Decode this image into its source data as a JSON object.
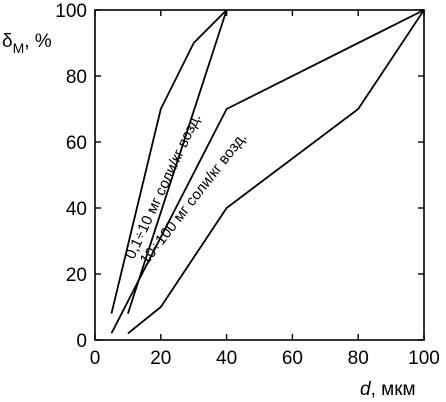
{
  "chart_data": {
    "type": "line",
    "xlabel": {
      "var": "d",
      "unit": ", мкм"
    },
    "ylabel": {
      "var": "δ",
      "sub": "М",
      "unit": ", %"
    },
    "xlim": [
      0,
      100
    ],
    "ylim": [
      0,
      100
    ],
    "xticks": [
      0,
      20,
      40,
      60,
      80,
      100
    ],
    "yticks": [
      0,
      20,
      40,
      60,
      80,
      100
    ],
    "grid": false,
    "colors": {
      "line": "#000000",
      "background": "#ffffff"
    },
    "series": [
      {
        "id": "band1-upper",
        "points": [
          [
            5,
            8
          ],
          [
            20,
            70
          ],
          [
            30,
            90
          ],
          [
            40,
            100
          ]
        ]
      },
      {
        "id": "band1-lower",
        "points": [
          [
            10,
            8
          ],
          [
            40,
            100
          ]
        ]
      },
      {
        "id": "band2-upper",
        "points": [
          [
            5,
            2
          ],
          [
            40,
            70
          ],
          [
            100,
            100
          ]
        ]
      },
      {
        "id": "band2-lower",
        "points": [
          [
            10,
            2
          ],
          [
            20,
            10
          ],
          [
            40,
            40
          ],
          [
            80,
            70
          ],
          [
            100,
            100
          ]
        ]
      }
    ],
    "annotations": [
      {
        "id": "band1",
        "text": "0,1÷10 мг соли/кг возд.",
        "x": 22,
        "y": 46,
        "angle": -65
      },
      {
        "id": "band2",
        "text": "10÷100 мг соли/кг возд.",
        "x": 31,
        "y": 42,
        "angle": -52
      }
    ]
  }
}
